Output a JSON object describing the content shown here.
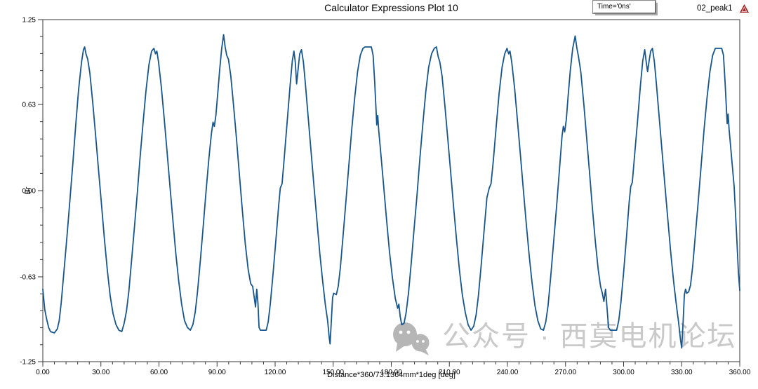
{
  "window": {
    "title": "Calculator Expressions Plot 10"
  },
  "annotation_box": {
    "label": "Time='0ns'"
  },
  "legend": {
    "series_label": "02_peak1",
    "marker": "triangle-icon",
    "marker_color": "#9e1b1b"
  },
  "watermark": {
    "icon": "wechat-icon",
    "text": "公众号 · 西莫电机论坛",
    "color": "#c9c9c9"
  },
  "colors": {
    "curve": "#16568F",
    "frame": "#3a3a3a",
    "ticks": "#3a3a3a",
    "text": "#000000"
  },
  "chart_data": {
    "type": "line",
    "title": "Calculator Expressions Plot 10",
    "xlabel": "Distance*360/73.1364mm*1deg [deg]",
    "ylabel": "Br",
    "xlim": [
      0,
      360
    ],
    "ylim": [
      -1.25,
      1.25
    ],
    "grid": false,
    "legend_position": "top-right",
    "x_ticks": [
      0,
      30,
      60,
      90,
      120,
      150,
      180,
      210,
      240,
      270,
      300,
      330,
      360
    ],
    "x_tick_labels": [
      "0.00",
      "30.00",
      "60.00",
      "90.00",
      "120.00",
      "150.00",
      "180.00",
      "210.00",
      "240.00",
      "270.00",
      "300.00",
      "330.00",
      "360.00"
    ],
    "x_minor_step": 6,
    "y_ticks": [
      1.25,
      0.63,
      0.0,
      -0.63,
      -1.25
    ],
    "y_tick_labels": [
      "1.25",
      "0.63",
      "0.00",
      "-0.63",
      "-1.25"
    ],
    "y_minor_per_major": 4,
    "series": [
      {
        "name": "02_peak1",
        "color": "#16568F",
        "points": [
          [
            0,
            -0.72
          ],
          [
            0.4,
            -0.78
          ],
          [
            1,
            -0.87
          ],
          [
            2,
            -0.94
          ],
          [
            3,
            -1.0
          ],
          [
            4,
            -1.03
          ],
          [
            6,
            -1.04
          ],
          [
            7.5,
            -1.01
          ],
          [
            8.5,
            -0.95
          ],
          [
            9.5,
            -0.82
          ],
          [
            11,
            -0.58
          ],
          [
            12.5,
            -0.33
          ],
          [
            14,
            -0.07
          ],
          [
            15.5,
            0.2
          ],
          [
            17,
            0.48
          ],
          [
            18.5,
            0.74
          ],
          [
            20,
            0.94
          ],
          [
            21,
            1.03
          ],
          [
            21.6,
            1.05
          ],
          [
            22.3,
            1.0
          ],
          [
            23.2,
            0.96
          ],
          [
            24.3,
            0.86
          ],
          [
            25.8,
            0.64
          ],
          [
            27.3,
            0.4
          ],
          [
            28.8,
            0.15
          ],
          [
            30.3,
            -0.1
          ],
          [
            31.8,
            -0.35
          ],
          [
            33.3,
            -0.58
          ],
          [
            34.8,
            -0.77
          ],
          [
            36.3,
            -0.9
          ],
          [
            37.8,
            -0.98
          ],
          [
            39.3,
            -1.02
          ],
          [
            40.8,
            -1.03
          ],
          [
            42,
            -0.97
          ],
          [
            43.2,
            -0.88
          ],
          [
            44.4,
            -0.74
          ],
          [
            45.8,
            -0.52
          ],
          [
            47.3,
            -0.27
          ],
          [
            48.8,
            -0.02
          ],
          [
            50.3,
            0.25
          ],
          [
            51.8,
            0.5
          ],
          [
            53.3,
            0.73
          ],
          [
            54.8,
            0.92
          ],
          [
            56.2,
            1.02
          ],
          [
            57.4,
            1.04
          ],
          [
            58.2,
            1.0
          ],
          [
            58.9,
            1.02
          ],
          [
            59.8,
            0.94
          ],
          [
            61.2,
            0.76
          ],
          [
            62.7,
            0.53
          ],
          [
            64.2,
            0.28
          ],
          [
            65.7,
            0.03
          ],
          [
            67.2,
            -0.22
          ],
          [
            68.7,
            -0.46
          ],
          [
            70.2,
            -0.66
          ],
          [
            71.7,
            -0.83
          ],
          [
            73.2,
            -0.95
          ],
          [
            74.7,
            -1.0
          ],
          [
            76.2,
            -1.02
          ],
          [
            77.5,
            -0.98
          ],
          [
            78.7,
            -0.89
          ],
          [
            79.9,
            -0.74
          ],
          [
            81.3,
            -0.52
          ],
          [
            82.8,
            -0.27
          ],
          [
            84.3,
            -0.01
          ],
          [
            85.8,
            0.24
          ],
          [
            87.1,
            0.42
          ],
          [
            87.9,
            0.5
          ],
          [
            88.6,
            0.47
          ],
          [
            89.4,
            0.55
          ],
          [
            90.4,
            0.72
          ],
          [
            91.4,
            0.89
          ],
          [
            92.4,
            1.04
          ],
          [
            93.4,
            1.14
          ],
          [
            94.2,
            1.05
          ],
          [
            95,
            0.99
          ],
          [
            95.9,
            0.96
          ],
          [
            97.1,
            0.84
          ],
          [
            98.6,
            0.61
          ],
          [
            100.1,
            0.37
          ],
          [
            101.6,
            0.11
          ],
          [
            103.1,
            -0.15
          ],
          [
            104.6,
            -0.39
          ],
          [
            106.1,
            -0.58
          ],
          [
            107.4,
            -0.68
          ],
          [
            108.4,
            -0.7
          ],
          [
            109.2,
            -0.78
          ],
          [
            109.9,
            -0.85
          ],
          [
            110.5,
            -0.72
          ],
          [
            111.1,
            -0.82
          ],
          [
            111.7,
            -1.0
          ],
          [
            112.4,
            -1.02
          ],
          [
            115.4,
            -1.02
          ],
          [
            116.4,
            -0.96
          ],
          [
            117.5,
            -0.83
          ],
          [
            118.9,
            -0.61
          ],
          [
            120.4,
            -0.36
          ],
          [
            121.9,
            -0.1
          ],
          [
            122.7,
            0.02
          ],
          [
            123.6,
            0.05
          ],
          [
            124.7,
            0.24
          ],
          [
            126.2,
            0.5
          ],
          [
            127.7,
            0.76
          ],
          [
            128.9,
            0.95
          ],
          [
            129.7,
            1.02
          ],
          [
            130.4,
            0.94
          ],
          [
            131.1,
            0.78
          ],
          [
            131.9,
            0.89
          ],
          [
            132.7,
            1.0
          ],
          [
            133.6,
            1.03
          ],
          [
            134.6,
            0.94
          ],
          [
            135.7,
            0.77
          ],
          [
            137.1,
            0.53
          ],
          [
            138.6,
            0.28
          ],
          [
            140.1,
            0.03
          ],
          [
            141.6,
            -0.22
          ],
          [
            143.1,
            -0.46
          ],
          [
            144.6,
            -0.67
          ],
          [
            146,
            -0.84
          ],
          [
            147.1,
            -0.95
          ],
          [
            148,
            -1.08
          ],
          [
            148.4,
            -1.12
          ],
          [
            149,
            -0.96
          ],
          [
            149.7,
            -0.78
          ],
          [
            150.3,
            -0.75
          ],
          [
            151.6,
            -0.76
          ],
          [
            152.6,
            -0.7
          ],
          [
            153.7,
            -0.56
          ],
          [
            155.1,
            -0.33
          ],
          [
            156.6,
            -0.07
          ],
          [
            158.1,
            0.19
          ],
          [
            159.6,
            0.45
          ],
          [
            161.1,
            0.68
          ],
          [
            162.6,
            0.87
          ],
          [
            164,
            0.99
          ],
          [
            165.4,
            1.04
          ],
          [
            166.4,
            1.05
          ],
          [
            169.7,
            1.05
          ],
          [
            170.6,
            0.99
          ],
          [
            171.4,
            0.8
          ],
          [
            172.1,
            0.6
          ],
          [
            172.5,
            0.48
          ],
          [
            173,
            0.55
          ],
          [
            173.5,
            0.44
          ],
          [
            174.6,
            0.27
          ],
          [
            176.1,
            0.03
          ],
          [
            177.6,
            -0.22
          ],
          [
            179.1,
            -0.45
          ],
          [
            180.6,
            -0.64
          ],
          [
            182.1,
            -0.79
          ],
          [
            183.3,
            -0.86
          ],
          [
            183.9,
            -0.83
          ],
          [
            184.6,
            -0.92
          ],
          [
            185.4,
            -0.98
          ],
          [
            186.6,
            -0.97
          ],
          [
            187.7,
            -0.89
          ],
          [
            188.9,
            -0.75
          ],
          [
            190.3,
            -0.53
          ],
          [
            191.8,
            -0.28
          ],
          [
            193.3,
            -0.03
          ],
          [
            194.8,
            0.24
          ],
          [
            196.3,
            0.49
          ],
          [
            197.8,
            0.72
          ],
          [
            199.3,
            0.9
          ],
          [
            200.8,
            1.0
          ],
          [
            202.2,
            1.04
          ],
          [
            203.3,
            1.05
          ],
          [
            204.2,
            0.98
          ],
          [
            205.1,
            0.94
          ],
          [
            206.2,
            0.84
          ],
          [
            207.7,
            0.62
          ],
          [
            209.2,
            0.38
          ],
          [
            210.7,
            0.13
          ],
          [
            212.2,
            -0.12
          ],
          [
            213.7,
            -0.36
          ],
          [
            215.2,
            -0.58
          ],
          [
            216.7,
            -0.76
          ],
          [
            218.2,
            -0.89
          ],
          [
            219.7,
            -0.98
          ],
          [
            221.2,
            -1.02
          ],
          [
            222.6,
            -0.99
          ],
          [
            223.8,
            -0.91
          ],
          [
            225,
            -0.77
          ],
          [
            226.4,
            -0.55
          ],
          [
            227.9,
            -0.3
          ],
          [
            229.4,
            -0.05
          ],
          [
            230.6,
            0.02
          ],
          [
            231.5,
            0.05
          ],
          [
            232.7,
            0.22
          ],
          [
            234.2,
            0.47
          ],
          [
            235.7,
            0.71
          ],
          [
            237.2,
            0.9
          ],
          [
            238.6,
            1.0
          ],
          [
            239.8,
            1.04
          ],
          [
            240.6,
            1.0
          ],
          [
            241.3,
            1.02
          ],
          [
            242.2,
            0.94
          ],
          [
            243.7,
            0.75
          ],
          [
            245.2,
            0.51
          ],
          [
            246.7,
            0.26
          ],
          [
            248.2,
            0.01
          ],
          [
            249.7,
            -0.24
          ],
          [
            251.2,
            -0.47
          ],
          [
            252.7,
            -0.67
          ],
          [
            254.2,
            -0.84
          ],
          [
            255.7,
            -0.95
          ],
          [
            257.2,
            -1.01
          ],
          [
            258.6,
            -1.02
          ],
          [
            259.8,
            -0.96
          ],
          [
            261,
            -0.84
          ],
          [
            262.4,
            -0.62
          ],
          [
            263.9,
            -0.37
          ],
          [
            265.4,
            -0.11
          ],
          [
            266.9,
            0.16
          ],
          [
            268.2,
            0.4
          ],
          [
            268.9,
            0.47
          ],
          [
            269.6,
            0.43
          ],
          [
            270.4,
            0.52
          ],
          [
            271.4,
            0.7
          ],
          [
            272.5,
            0.88
          ],
          [
            273.7,
            1.04
          ],
          [
            275,
            1.13
          ],
          [
            275.9,
            1.04
          ],
          [
            276.7,
            0.98
          ],
          [
            277.9,
            0.87
          ],
          [
            279.4,
            0.64
          ],
          [
            280.9,
            0.39
          ],
          [
            282.4,
            0.13
          ],
          [
            283.9,
            -0.13
          ],
          [
            285.4,
            -0.37
          ],
          [
            286.9,
            -0.58
          ],
          [
            288.1,
            -0.7
          ],
          [
            289,
            -0.75
          ],
          [
            289.8,
            -0.81
          ],
          [
            290.7,
            -0.72
          ],
          [
            291.4,
            -0.85
          ],
          [
            292.2,
            -1.0
          ],
          [
            293.1,
            -1.02
          ],
          [
            296.4,
            -1.02
          ],
          [
            297.5,
            -0.95
          ],
          [
            298.6,
            -0.82
          ],
          [
            300,
            -0.6
          ],
          [
            301.5,
            -0.34
          ],
          [
            302.9,
            -0.08
          ],
          [
            303.7,
            0.03
          ],
          [
            304.5,
            0.06
          ],
          [
            305.7,
            0.26
          ],
          [
            307.2,
            0.51
          ],
          [
            308.7,
            0.77
          ],
          [
            309.9,
            0.95
          ],
          [
            310.9,
            1.03
          ],
          [
            311.6,
            0.95
          ],
          [
            312.4,
            0.87
          ],
          [
            313.2,
            0.95
          ],
          [
            314,
            1.02
          ],
          [
            314.9,
            1.04
          ],
          [
            315.9,
            0.94
          ],
          [
            317,
            0.77
          ],
          [
            318.4,
            0.53
          ],
          [
            319.9,
            0.28
          ],
          [
            321.4,
            0.03
          ],
          [
            322.9,
            -0.22
          ],
          [
            324.4,
            -0.46
          ],
          [
            325.9,
            -0.67
          ],
          [
            327.3,
            -0.84
          ],
          [
            328.4,
            -0.96
          ],
          [
            329.4,
            -1.09
          ],
          [
            330,
            -1.15
          ],
          [
            330.7,
            -0.97
          ],
          [
            331.4,
            -0.76
          ],
          [
            332,
            -0.72
          ],
          [
            332.6,
            -0.75
          ],
          [
            333.6,
            -0.74
          ],
          [
            334.6,
            -0.69
          ],
          [
            335.7,
            -0.55
          ],
          [
            337.1,
            -0.32
          ],
          [
            338.6,
            -0.07
          ],
          [
            340.1,
            0.19
          ],
          [
            341.6,
            0.45
          ],
          [
            343.1,
            0.68
          ],
          [
            344.6,
            0.87
          ],
          [
            346,
            0.99
          ],
          [
            347.4,
            1.04
          ],
          [
            348.2,
            1.04
          ],
          [
            350.7,
            1.04
          ],
          [
            351.6,
            0.99
          ],
          [
            352.4,
            0.8
          ],
          [
            353.1,
            0.6
          ],
          [
            353.5,
            0.49
          ],
          [
            354,
            0.56
          ],
          [
            354.5,
            0.45
          ],
          [
            355.6,
            0.27
          ],
          [
            357.1,
            0.03
          ],
          [
            358.3,
            -0.3
          ],
          [
            359.3,
            -0.6
          ],
          [
            360,
            -0.73
          ]
        ]
      }
    ]
  }
}
